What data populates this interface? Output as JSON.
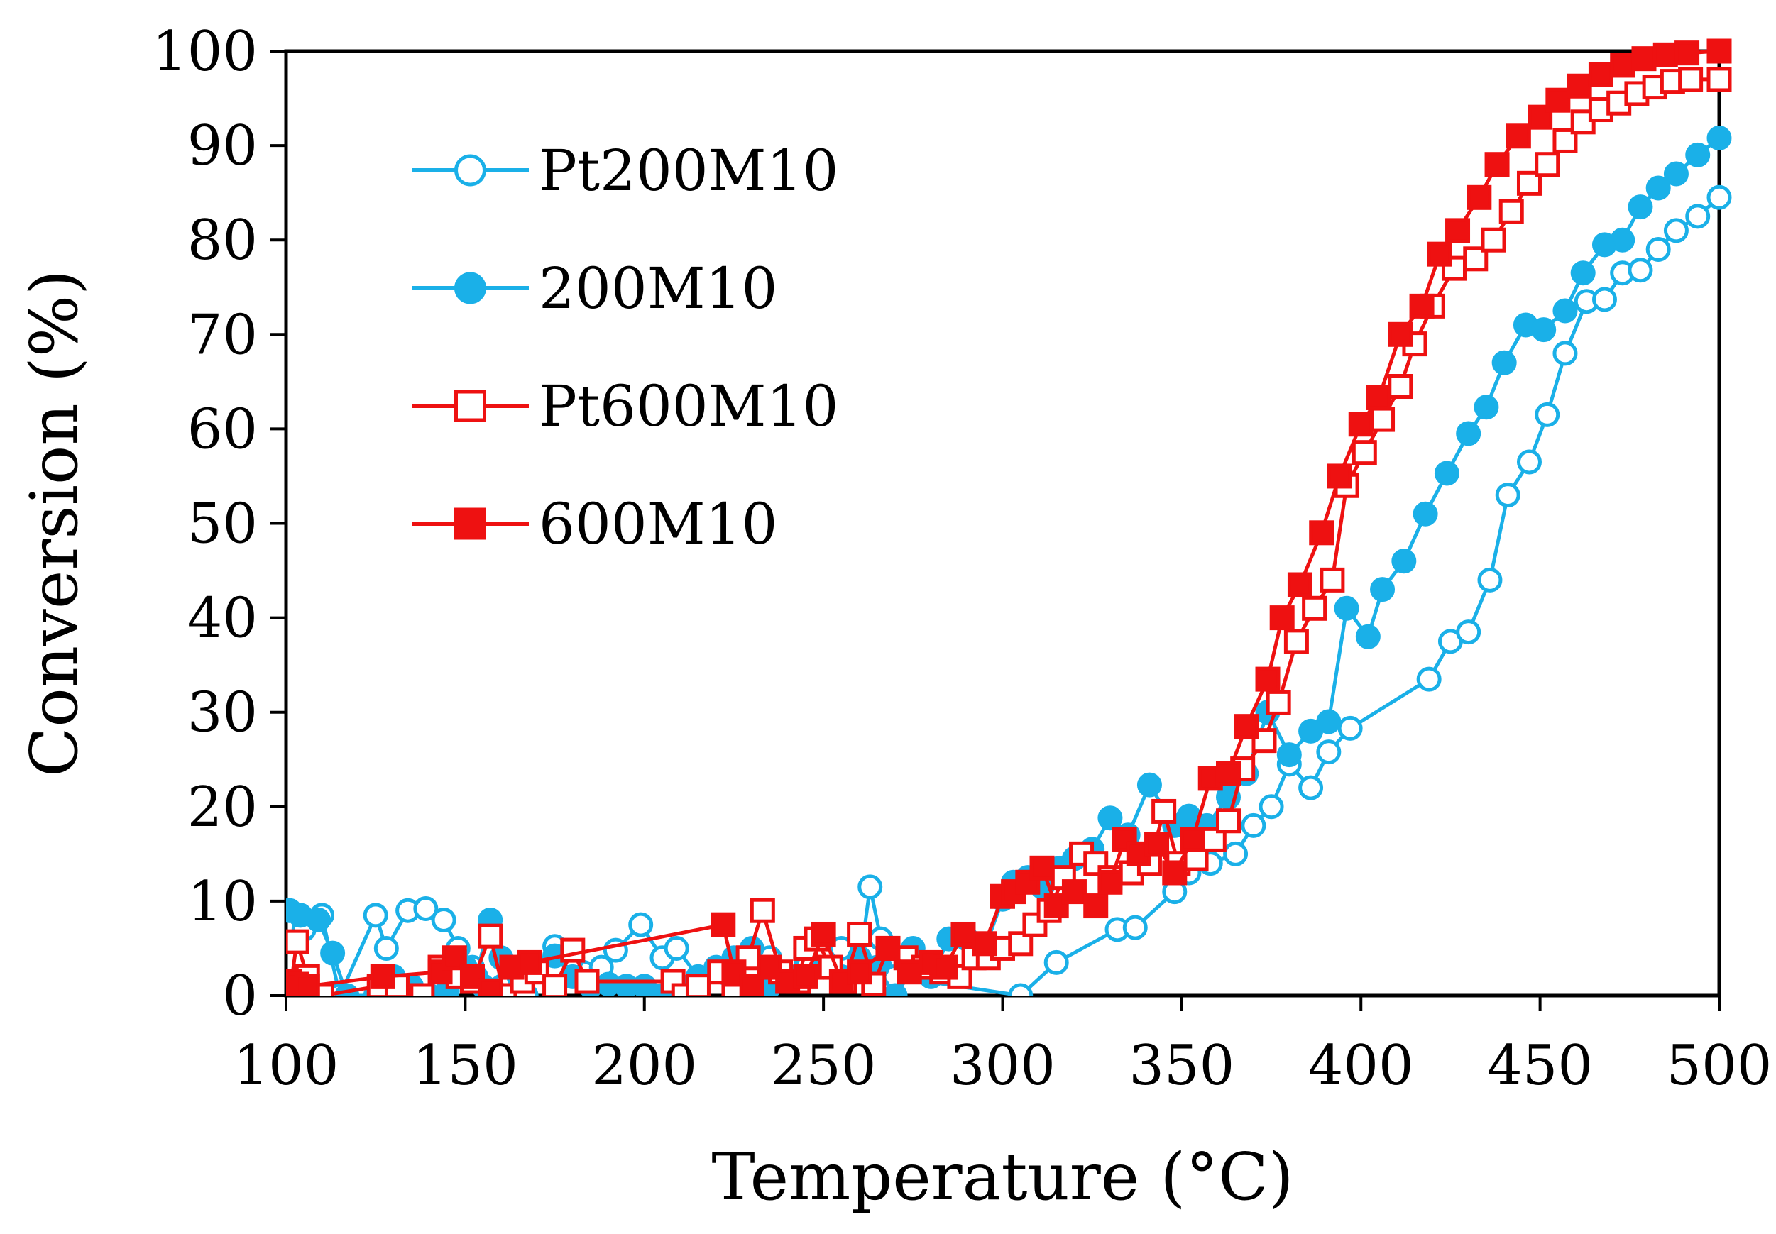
{
  "chart_data": {
    "type": "line",
    "title": "",
    "xlabel": "Temperature (°C)",
    "ylabel": "Conversion (%)",
    "xlim": [
      100,
      500
    ],
    "ylim": [
      0,
      100
    ],
    "x_ticks": [
      "100",
      "150",
      "200",
      "250",
      "300",
      "350",
      "400",
      "450",
      "500"
    ],
    "y_ticks": [
      "0",
      "10",
      "20",
      "30",
      "40",
      "50",
      "60",
      "70",
      "80",
      "90",
      "100"
    ],
    "legend_position": "top-left",
    "series": [
      {
        "name": "Pt200M10",
        "color": "#1ab0e8",
        "marker": "circle",
        "filled": false,
        "points": [
          [
            101,
            9
          ],
          [
            105,
            7
          ],
          [
            110,
            8.5
          ],
          [
            115,
            0
          ],
          [
            125,
            8.5
          ],
          [
            128,
            5
          ],
          [
            134,
            9
          ],
          [
            139,
            9.2
          ],
          [
            144,
            8
          ],
          [
            148,
            5
          ],
          [
            152,
            3
          ],
          [
            155,
            1
          ],
          [
            163,
            3
          ],
          [
            167,
            0
          ],
          [
            175,
            5.2
          ],
          [
            180,
            4
          ],
          [
            188,
            3
          ],
          [
            192,
            4.8
          ],
          [
            199,
            7.5
          ],
          [
            205,
            4
          ],
          [
            209,
            5
          ],
          [
            215,
            2
          ],
          [
            225,
            1
          ],
          [
            230,
            3
          ],
          [
            235,
            4
          ],
          [
            240,
            2
          ],
          [
            245,
            4
          ],
          [
            250,
            6
          ],
          [
            255,
            5
          ],
          [
            260,
            3
          ],
          [
            263,
            11.5
          ],
          [
            266,
            6
          ],
          [
            270,
            2
          ],
          [
            305,
            0
          ],
          [
            315,
            3.5
          ],
          [
            332,
            7
          ],
          [
            337,
            7.2
          ],
          [
            348,
            11
          ],
          [
            352,
            13
          ],
          [
            358,
            14
          ],
          [
            365,
            15
          ],
          [
            370,
            18
          ],
          [
            375,
            20
          ],
          [
            380,
            24.5
          ],
          [
            386,
            22
          ],
          [
            391,
            25.8
          ],
          [
            397,
            28.3
          ],
          [
            419,
            33.5
          ],
          [
            425,
            37.5
          ],
          [
            430,
            38.5
          ],
          [
            436,
            44
          ],
          [
            441,
            53
          ],
          [
            447,
            56.5
          ],
          [
            452,
            61.5
          ],
          [
            457,
            68
          ],
          [
            463,
            73.5
          ],
          [
            468,
            73.7
          ],
          [
            473,
            76.5
          ],
          [
            478,
            76.8
          ],
          [
            483,
            79
          ],
          [
            488,
            81
          ],
          [
            494,
            82.5
          ],
          [
            500,
            84.5
          ]
        ]
      },
      {
        "name": "200M10",
        "color": "#1ab0e8",
        "marker": "circle",
        "filled": true,
        "points": [
          [
            101,
            9
          ],
          [
            104,
            8.5
          ],
          [
            109,
            8
          ],
          [
            113,
            4.5
          ],
          [
            117,
            0
          ],
          [
            125,
            0
          ],
          [
            130,
            2
          ],
          [
            135,
            1
          ],
          [
            140,
            0
          ],
          [
            145,
            0.5
          ],
          [
            150,
            3
          ],
          [
            153,
            2
          ],
          [
            157,
            8
          ],
          [
            160,
            4
          ],
          [
            165,
            2
          ],
          [
            170,
            3
          ],
          [
            175,
            4.2
          ],
          [
            180,
            2
          ],
          [
            185,
            1
          ],
          [
            190,
            1.2
          ],
          [
            195,
            1
          ],
          [
            200,
            1
          ],
          [
            205,
            0
          ],
          [
            210,
            1
          ],
          [
            215,
            2
          ],
          [
            220,
            3
          ],
          [
            225,
            4
          ],
          [
            230,
            5
          ],
          [
            235,
            1
          ],
          [
            240,
            2
          ],
          [
            245,
            5
          ],
          [
            250,
            3
          ],
          [
            255,
            2
          ],
          [
            260,
            4
          ],
          [
            265,
            3
          ],
          [
            270,
            0
          ],
          [
            275,
            5
          ],
          [
            280,
            2
          ],
          [
            285,
            6
          ],
          [
            290,
            6
          ],
          [
            295,
            5
          ],
          [
            300,
            10.2
          ],
          [
            303,
            12
          ],
          [
            307,
            12.5
          ],
          [
            311,
            11.5
          ],
          [
            316,
            13.5
          ],
          [
            320,
            14.5
          ],
          [
            325,
            15.5
          ],
          [
            330,
            18.8
          ],
          [
            335,
            17
          ],
          [
            341,
            22.3
          ],
          [
            348,
            18
          ],
          [
            352,
            19
          ],
          [
            357,
            18
          ],
          [
            363,
            21
          ],
          [
            368,
            23.5
          ],
          [
            374,
            30
          ],
          [
            380,
            25.5
          ],
          [
            386,
            28
          ],
          [
            391,
            29
          ],
          [
            396,
            41
          ],
          [
            402,
            38
          ],
          [
            406,
            43
          ],
          [
            412,
            46
          ],
          [
            418,
            51
          ],
          [
            424,
            55.3
          ],
          [
            430,
            59.5
          ],
          [
            435,
            62.3
          ],
          [
            440,
            67
          ],
          [
            446,
            71
          ],
          [
            451,
            70.5
          ],
          [
            457,
            72.5
          ],
          [
            462,
            76.5
          ],
          [
            468,
            79.5
          ],
          [
            473,
            80
          ],
          [
            478,
            83.5
          ],
          [
            483,
            85.5
          ],
          [
            488,
            87
          ],
          [
            494,
            89
          ],
          [
            500,
            90.8
          ]
        ]
      },
      {
        "name": "Pt600M10",
        "color": "#ee1111",
        "marker": "square",
        "filled": false,
        "points": [
          [
            101,
            0
          ],
          [
            103,
            5.7
          ],
          [
            106,
            2
          ],
          [
            110,
            0
          ],
          [
            126,
            1
          ],
          [
            131,
            1
          ],
          [
            138,
            0
          ],
          [
            143,
            3
          ],
          [
            148,
            2
          ],
          [
            152,
            1.5
          ],
          [
            157,
            6.3
          ],
          [
            161,
            0
          ],
          [
            166,
            1.5
          ],
          [
            170,
            2.5
          ],
          [
            175,
            1
          ],
          [
            180,
            4.8
          ],
          [
            184,
            1.5
          ],
          [
            208,
            1.5
          ],
          [
            211,
            0
          ],
          [
            215,
            1
          ],
          [
            221,
            2.5
          ],
          [
            225,
            0
          ],
          [
            229,
            4
          ],
          [
            233,
            9
          ],
          [
            238,
            2.5
          ],
          [
            243,
            1.5
          ],
          [
            245,
            5
          ],
          [
            248,
            6
          ],
          [
            252,
            3
          ],
          [
            256,
            1.5
          ],
          [
            260,
            6.5
          ],
          [
            264,
            1.2
          ],
          [
            268,
            5
          ],
          [
            273,
            4
          ],
          [
            278,
            3
          ],
          [
            283,
            2.5
          ],
          [
            288,
            2
          ],
          [
            292,
            4
          ],
          [
            296,
            4
          ],
          [
            300,
            5
          ],
          [
            305,
            5.5
          ],
          [
            309,
            7.5
          ],
          [
            313,
            9
          ],
          [
            317,
            12.5
          ],
          [
            322,
            15
          ],
          [
            326,
            14
          ],
          [
            330,
            12.5
          ],
          [
            336,
            13
          ],
          [
            341,
            14
          ],
          [
            345,
            19.5
          ],
          [
            349,
            14
          ],
          [
            354,
            14.5
          ],
          [
            359,
            16.5
          ],
          [
            363,
            18.5
          ],
          [
            367,
            24
          ],
          [
            373,
            27
          ],
          [
            377,
            31
          ],
          [
            382,
            37.5
          ],
          [
            387,
            41
          ],
          [
            392,
            44
          ],
          [
            396,
            54
          ],
          [
            401,
            57.5
          ],
          [
            406,
            61
          ],
          [
            411,
            64.5
          ],
          [
            415,
            69
          ],
          [
            420,
            73
          ],
          [
            426,
            77
          ],
          [
            432,
            78
          ],
          [
            437,
            80
          ],
          [
            442,
            83
          ],
          [
            447,
            86
          ],
          [
            452,
            88
          ],
          [
            457,
            90.5
          ],
          [
            462,
            92.5
          ],
          [
            467,
            93.8
          ],
          [
            472,
            94.5
          ],
          [
            477,
            95.5
          ],
          [
            482,
            96.2
          ],
          [
            487,
            96.8
          ],
          [
            492,
            97
          ],
          [
            500,
            97
          ]
        ]
      },
      {
        "name": "600M10",
        "color": "#ee1111",
        "marker": "square",
        "filled": true,
        "points": [
          [
            101,
            1.5
          ],
          [
            103,
            1.2
          ],
          [
            106,
            1
          ],
          [
            127,
            2
          ],
          [
            143,
            2.5
          ],
          [
            147,
            4
          ],
          [
            152,
            2
          ],
          [
            157,
            0.5
          ],
          [
            163,
            3
          ],
          [
            168,
            3.5
          ],
          [
            222,
            7.5
          ],
          [
            225,
            2.5
          ],
          [
            230,
            1
          ],
          [
            235,
            3
          ],
          [
            240,
            1.5
          ],
          [
            245,
            2
          ],
          [
            250,
            6.5
          ],
          [
            255,
            1.5
          ],
          [
            260,
            2.5
          ],
          [
            268,
            5
          ],
          [
            274,
            2.5
          ],
          [
            280,
            3.5
          ],
          [
            284,
            3
          ],
          [
            289,
            6.5
          ],
          [
            295,
            5.5
          ],
          [
            300,
            10.5
          ],
          [
            303,
            11
          ],
          [
            307,
            12
          ],
          [
            311,
            13.5
          ],
          [
            315,
            9.5
          ],
          [
            320,
            11
          ],
          [
            326,
            9.5
          ],
          [
            330,
            12
          ],
          [
            334,
            16.5
          ],
          [
            338,
            15
          ],
          [
            343,
            16
          ],
          [
            348,
            13
          ],
          [
            353,
            16.5
          ],
          [
            358,
            23
          ],
          [
            363,
            23.5
          ],
          [
            368,
            28.5
          ],
          [
            374,
            33.5
          ],
          [
            378,
            40
          ],
          [
            383,
            43.5
          ],
          [
            389,
            49
          ],
          [
            394,
            55
          ],
          [
            400,
            60.5
          ],
          [
            405,
            63.3
          ],
          [
            411,
            70
          ],
          [
            417,
            73
          ],
          [
            422,
            78.5
          ],
          [
            427,
            81
          ],
          [
            433,
            84.5
          ],
          [
            438,
            88
          ],
          [
            444,
            91
          ],
          [
            450,
            93
          ],
          [
            455,
            94.8
          ],
          [
            461,
            96.3
          ],
          [
            467,
            97.5
          ],
          [
            473,
            98.5
          ],
          [
            479,
            99.2
          ],
          [
            485,
            99.6
          ],
          [
            491,
            99.8
          ],
          [
            500,
            100
          ]
        ]
      }
    ]
  }
}
